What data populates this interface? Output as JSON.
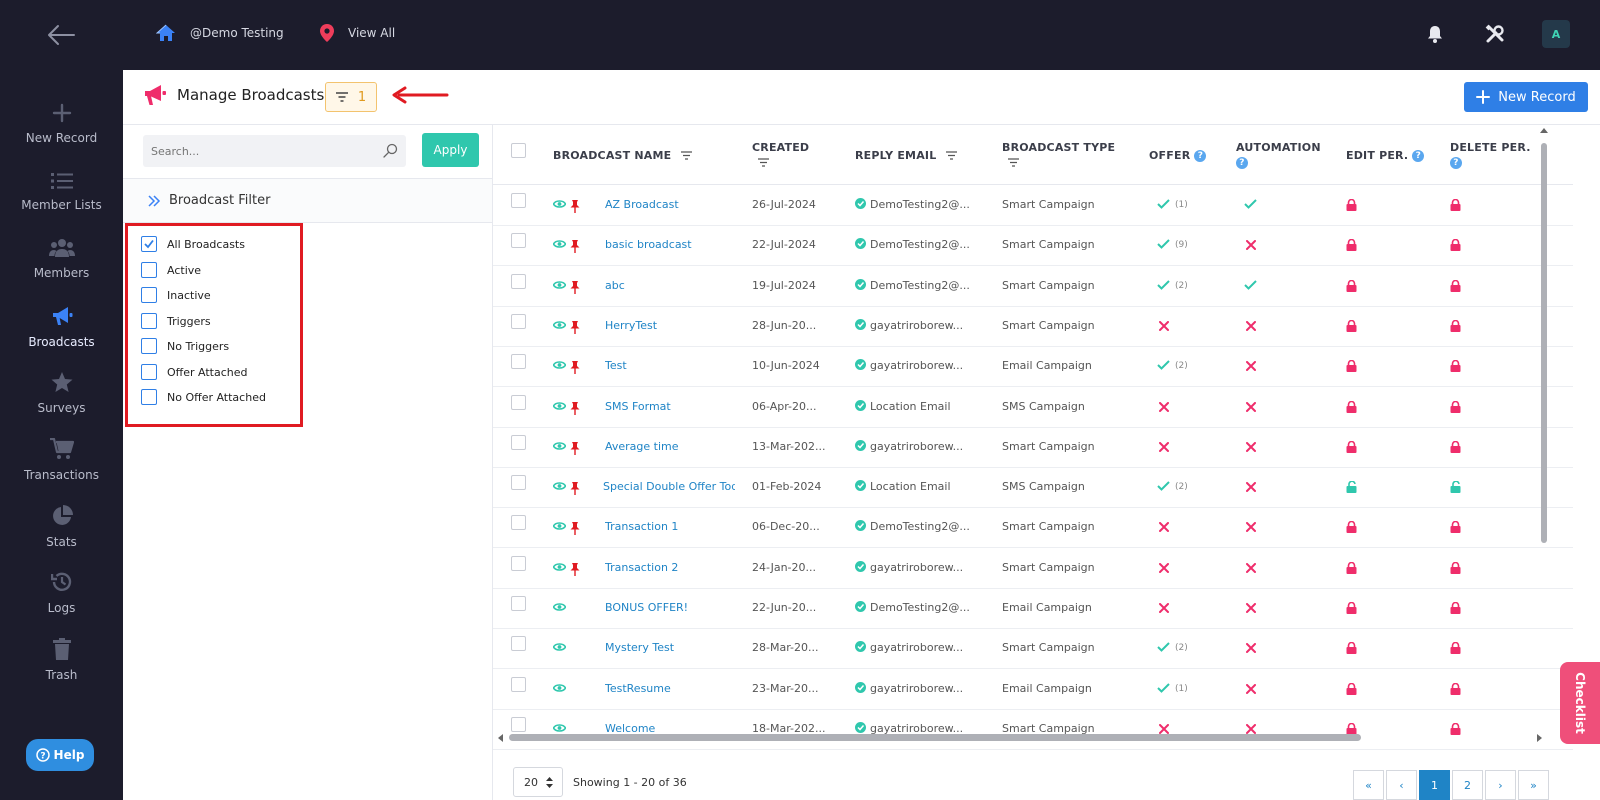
{
  "topbar": {
    "breadcrumb_home": "@Demo Testing",
    "breadcrumb_view_all": "View All",
    "avatar_initial": "A"
  },
  "sidebar": {
    "items": [
      {
        "label": "New Record",
        "icon": "plus-icon"
      },
      {
        "label": "Member Lists",
        "icon": "list-icon"
      },
      {
        "label": "Members",
        "icon": "members-icon"
      },
      {
        "label": "Broadcasts",
        "icon": "megaphone-icon",
        "active": true
      },
      {
        "label": "Surveys",
        "icon": "star-icon"
      },
      {
        "label": "Transactions",
        "icon": "cart-icon"
      },
      {
        "label": "Stats",
        "icon": "pie-chart-icon"
      },
      {
        "label": "Logs",
        "icon": "history-icon"
      },
      {
        "label": "Trash",
        "icon": "trash-icon"
      }
    ],
    "help_label": "Help"
  },
  "header": {
    "title": "Manage Broadcasts",
    "filter_count": "1",
    "new_record_label": "New Record"
  },
  "filter_panel": {
    "search_placeholder": "Search...",
    "apply_label": "Apply",
    "title": "Broadcast Filter",
    "options": [
      {
        "label": "All Broadcasts",
        "checked": true
      },
      {
        "label": "Active",
        "checked": false
      },
      {
        "label": "Inactive",
        "checked": false
      },
      {
        "label": "Triggers",
        "checked": false
      },
      {
        "label": "No Triggers",
        "checked": false
      },
      {
        "label": "Offer Attached",
        "checked": false
      },
      {
        "label": "No Offer Attached",
        "checked": false
      }
    ]
  },
  "table": {
    "columns": {
      "name": "BROADCAST NAME",
      "created": "CREATED",
      "reply_email": "REPLY EMAIL",
      "type": "BROADCAST TYPE",
      "offer": "OFFER",
      "automation": "AUTOMATION",
      "edit_per": "EDIT PER.",
      "delete_per": "DELETE PER."
    },
    "rows": [
      {
        "name": "AZ Broadcast",
        "created": "26-Jul-2024",
        "email": "DemoTesting2@...",
        "type": "Smart Campaign",
        "offer": true,
        "offer_count": "(1)",
        "automation": true,
        "pinned": true,
        "edit_locked": true,
        "delete_locked": true
      },
      {
        "name": "basic broadcast",
        "created": "22-Jul-2024",
        "email": "DemoTesting2@...",
        "type": "Smart Campaign",
        "offer": true,
        "offer_count": "(9)",
        "automation": false,
        "pinned": true,
        "edit_locked": true,
        "delete_locked": true
      },
      {
        "name": "abc",
        "created": "19-Jul-2024",
        "email": "DemoTesting2@...",
        "type": "Smart Campaign",
        "offer": true,
        "offer_count": "(2)",
        "automation": true,
        "pinned": true,
        "edit_locked": true,
        "delete_locked": true
      },
      {
        "name": "HerryTest",
        "created": "28-Jun-20...",
        "email": "gayatriroborew...",
        "type": "Smart Campaign",
        "offer": false,
        "offer_count": "",
        "automation": false,
        "pinned": true,
        "edit_locked": true,
        "delete_locked": true
      },
      {
        "name": "Test",
        "created": "10-Jun-2024",
        "email": "gayatriroborew...",
        "type": "Email Campaign",
        "offer": true,
        "offer_count": "(2)",
        "automation": false,
        "pinned": true,
        "edit_locked": true,
        "delete_locked": true
      },
      {
        "name": "SMS Format",
        "created": "06-Apr-20...",
        "email": "Location Email",
        "type": "SMS Campaign",
        "offer": false,
        "offer_count": "",
        "automation": false,
        "pinned": true,
        "edit_locked": true,
        "delete_locked": true
      },
      {
        "name": "Average time",
        "created": "13-Mar-202...",
        "email": "gayatriroborew...",
        "type": "Smart Campaign",
        "offer": false,
        "offer_count": "",
        "automation": false,
        "pinned": true,
        "edit_locked": true,
        "delete_locked": true
      },
      {
        "name": "Special Double Offer Tod",
        "created": "01-Feb-2024",
        "email": "Location Email",
        "type": "SMS Campaign",
        "offer": true,
        "offer_count": "(2)",
        "automation": false,
        "pinned": true,
        "edit_locked": false,
        "delete_locked": false
      },
      {
        "name": "Transaction 1",
        "created": "06-Dec-20...",
        "email": "DemoTesting2@...",
        "type": "Smart Campaign",
        "offer": false,
        "offer_count": "",
        "automation": false,
        "pinned": true,
        "edit_locked": true,
        "delete_locked": true
      },
      {
        "name": "Transaction 2",
        "created": "24-Jan-20...",
        "email": "gayatriroborew...",
        "type": "Smart Campaign",
        "offer": false,
        "offer_count": "",
        "automation": false,
        "pinned": true,
        "edit_locked": true,
        "delete_locked": true
      },
      {
        "name": "BONUS OFFER!",
        "created": "22-Jun-20...",
        "email": "DemoTesting2@...",
        "type": "Email Campaign",
        "offer": false,
        "offer_count": "",
        "automation": false,
        "pinned": false,
        "edit_locked": true,
        "delete_locked": true
      },
      {
        "name": "Mystery Test",
        "created": "28-Mar-20...",
        "email": "gayatriroborew...",
        "type": "Smart Campaign",
        "offer": true,
        "offer_count": "(2)",
        "automation": false,
        "pinned": false,
        "edit_locked": true,
        "delete_locked": true
      },
      {
        "name": "TestResume",
        "created": "23-Mar-20...",
        "email": "gayatriroborew...",
        "type": "Email Campaign",
        "offer": true,
        "offer_count": "(1)",
        "automation": false,
        "pinned": false,
        "edit_locked": true,
        "delete_locked": true
      },
      {
        "name": "Welcome",
        "created": "18-Mar-202...",
        "email": "gayatriroborew...",
        "type": "Smart Campaign",
        "offer": false,
        "offer_count": "",
        "automation": false,
        "pinned": false,
        "edit_locked": true,
        "delete_locked": true
      }
    ]
  },
  "footer": {
    "page_size": "20",
    "showing": "Showing 1 - 20 of 36",
    "pages": [
      "«",
      "‹",
      "1",
      "2",
      "›",
      "»"
    ],
    "current_page": "1"
  },
  "checklist_label": "Checklist",
  "colors": {
    "accent_teal": "#2fc7ad",
    "link_blue": "#1f84c6",
    "danger_pink": "#ef2d6b",
    "nav_bg": "#1c1c2c"
  }
}
